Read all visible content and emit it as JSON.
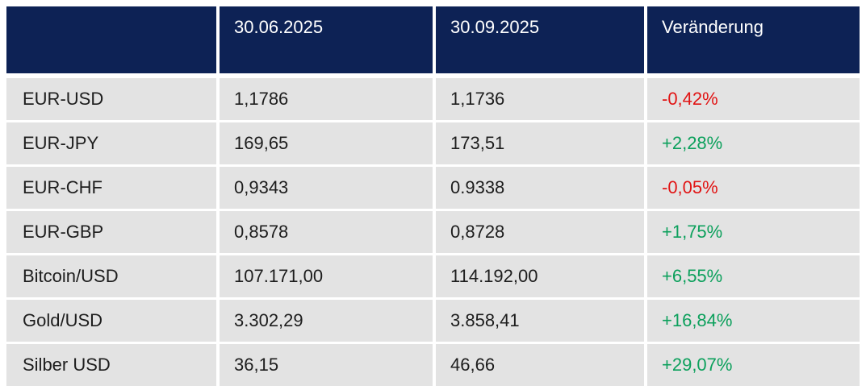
{
  "colors": {
    "header_bg": "#0d2255",
    "header_text": "#ffffff",
    "row_bg": "#e3e3e3",
    "cell_text": "#1d1d1d",
    "positive_green": "#0ca05c",
    "negative_red": "#e11414"
  },
  "table": {
    "header": {
      "labels": [
        "",
        "30.06.2025",
        "30.09.2025",
        "Veränderung"
      ]
    },
    "rows": [
      {
        "label": "EUR-USD",
        "v1": "1,1786",
        "v2": "1,1736",
        "change": "-0,42%",
        "direction": "down"
      },
      {
        "label": "EUR-JPY",
        "v1": "169,65",
        "v2": "173,51",
        "change": "+2,28%",
        "direction": "up"
      },
      {
        "label": "EUR-CHF",
        "v1": "0,9343",
        "v2": "0.9338",
        "change": "-0,05%",
        "direction": "down"
      },
      {
        "label": "EUR-GBP",
        "v1": "0,8578",
        "v2": "0,8728",
        "change": "+1,75%",
        "direction": "up"
      },
      {
        "label": "Bitcoin/USD",
        "v1": "107.171,00",
        "v2": "114.192,00",
        "change": "+6,55%",
        "direction": "up"
      },
      {
        "label": "Gold/USD",
        "v1": "3.302,29",
        "v2": "3.858,41",
        "change": "+16,84%",
        "direction": "up"
      },
      {
        "label": "Silber USD",
        "v1": "36,15",
        "v2": "46,66",
        "change": "+29,07%",
        "direction": "up"
      }
    ]
  },
  "chart_data": {
    "type": "table",
    "title": "",
    "columns": [
      "",
      "30.06.2025",
      "30.09.2025",
      "Veränderung"
    ],
    "rows": [
      [
        "EUR-USD",
        "1,1786",
        "1,1736",
        "-0,42%"
      ],
      [
        "EUR-JPY",
        "169,65",
        "173,51",
        "+2,28%"
      ],
      [
        "EUR-CHF",
        "0,9343",
        "0.9338",
        "-0,05%"
      ],
      [
        "EUR-GBP",
        "0,8578",
        "0,8728",
        "+1,75%"
      ],
      [
        "Bitcoin/USD",
        "107.171,00",
        "114.192,00",
        "+6,55%"
      ],
      [
        "Gold/USD",
        "3.302,29",
        "3.858,41",
        "+16,84%"
      ],
      [
        "Silber USD",
        "36,15",
        "46,66",
        "+29,07%"
      ]
    ],
    "notes": "Change column colored red for negative, green for positive"
  }
}
